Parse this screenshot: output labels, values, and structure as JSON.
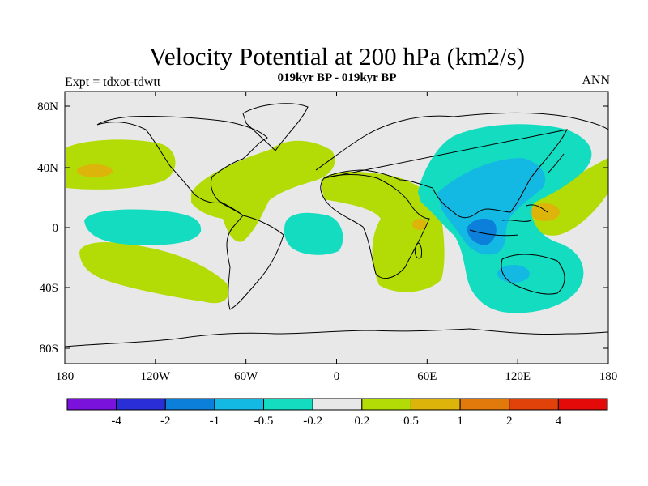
{
  "header": {
    "title": "Velocity Potential at 200 hPa (km2/s)",
    "subtitle": "019kyr BP - 019kyr BP",
    "expt": "Expt = tdxot-tdwtt",
    "season": "ANN"
  },
  "axes": {
    "lat_labels": [
      "80N",
      "40N",
      "0",
      "40S",
      "80S"
    ],
    "lon_labels": [
      "180",
      "120W",
      "60W",
      "0",
      "60E",
      "120E",
      "180"
    ]
  },
  "legend": {
    "colors": [
      "#7a12dc",
      "#2a2ed6",
      "#0b7fd9",
      "#13b9e3",
      "#14dcc0",
      "#e8e8e8",
      "#b3dc06",
      "#ddb40a",
      "#e17a0a",
      "#e0420a",
      "#e40a0a"
    ],
    "tick_labels": [
      "-4",
      "-2",
      "-1",
      "-0.5",
      "-0.2",
      "0.2",
      "0.5",
      "1",
      "2",
      "4"
    ]
  },
  "palette": {
    "neutral": "#e8e8e8",
    "green": "#b3dc06",
    "orange": "#ddb40a",
    "cyan": "#14dcc0",
    "sky": "#13b9e3",
    "blue": "#0b7fd9"
  }
}
